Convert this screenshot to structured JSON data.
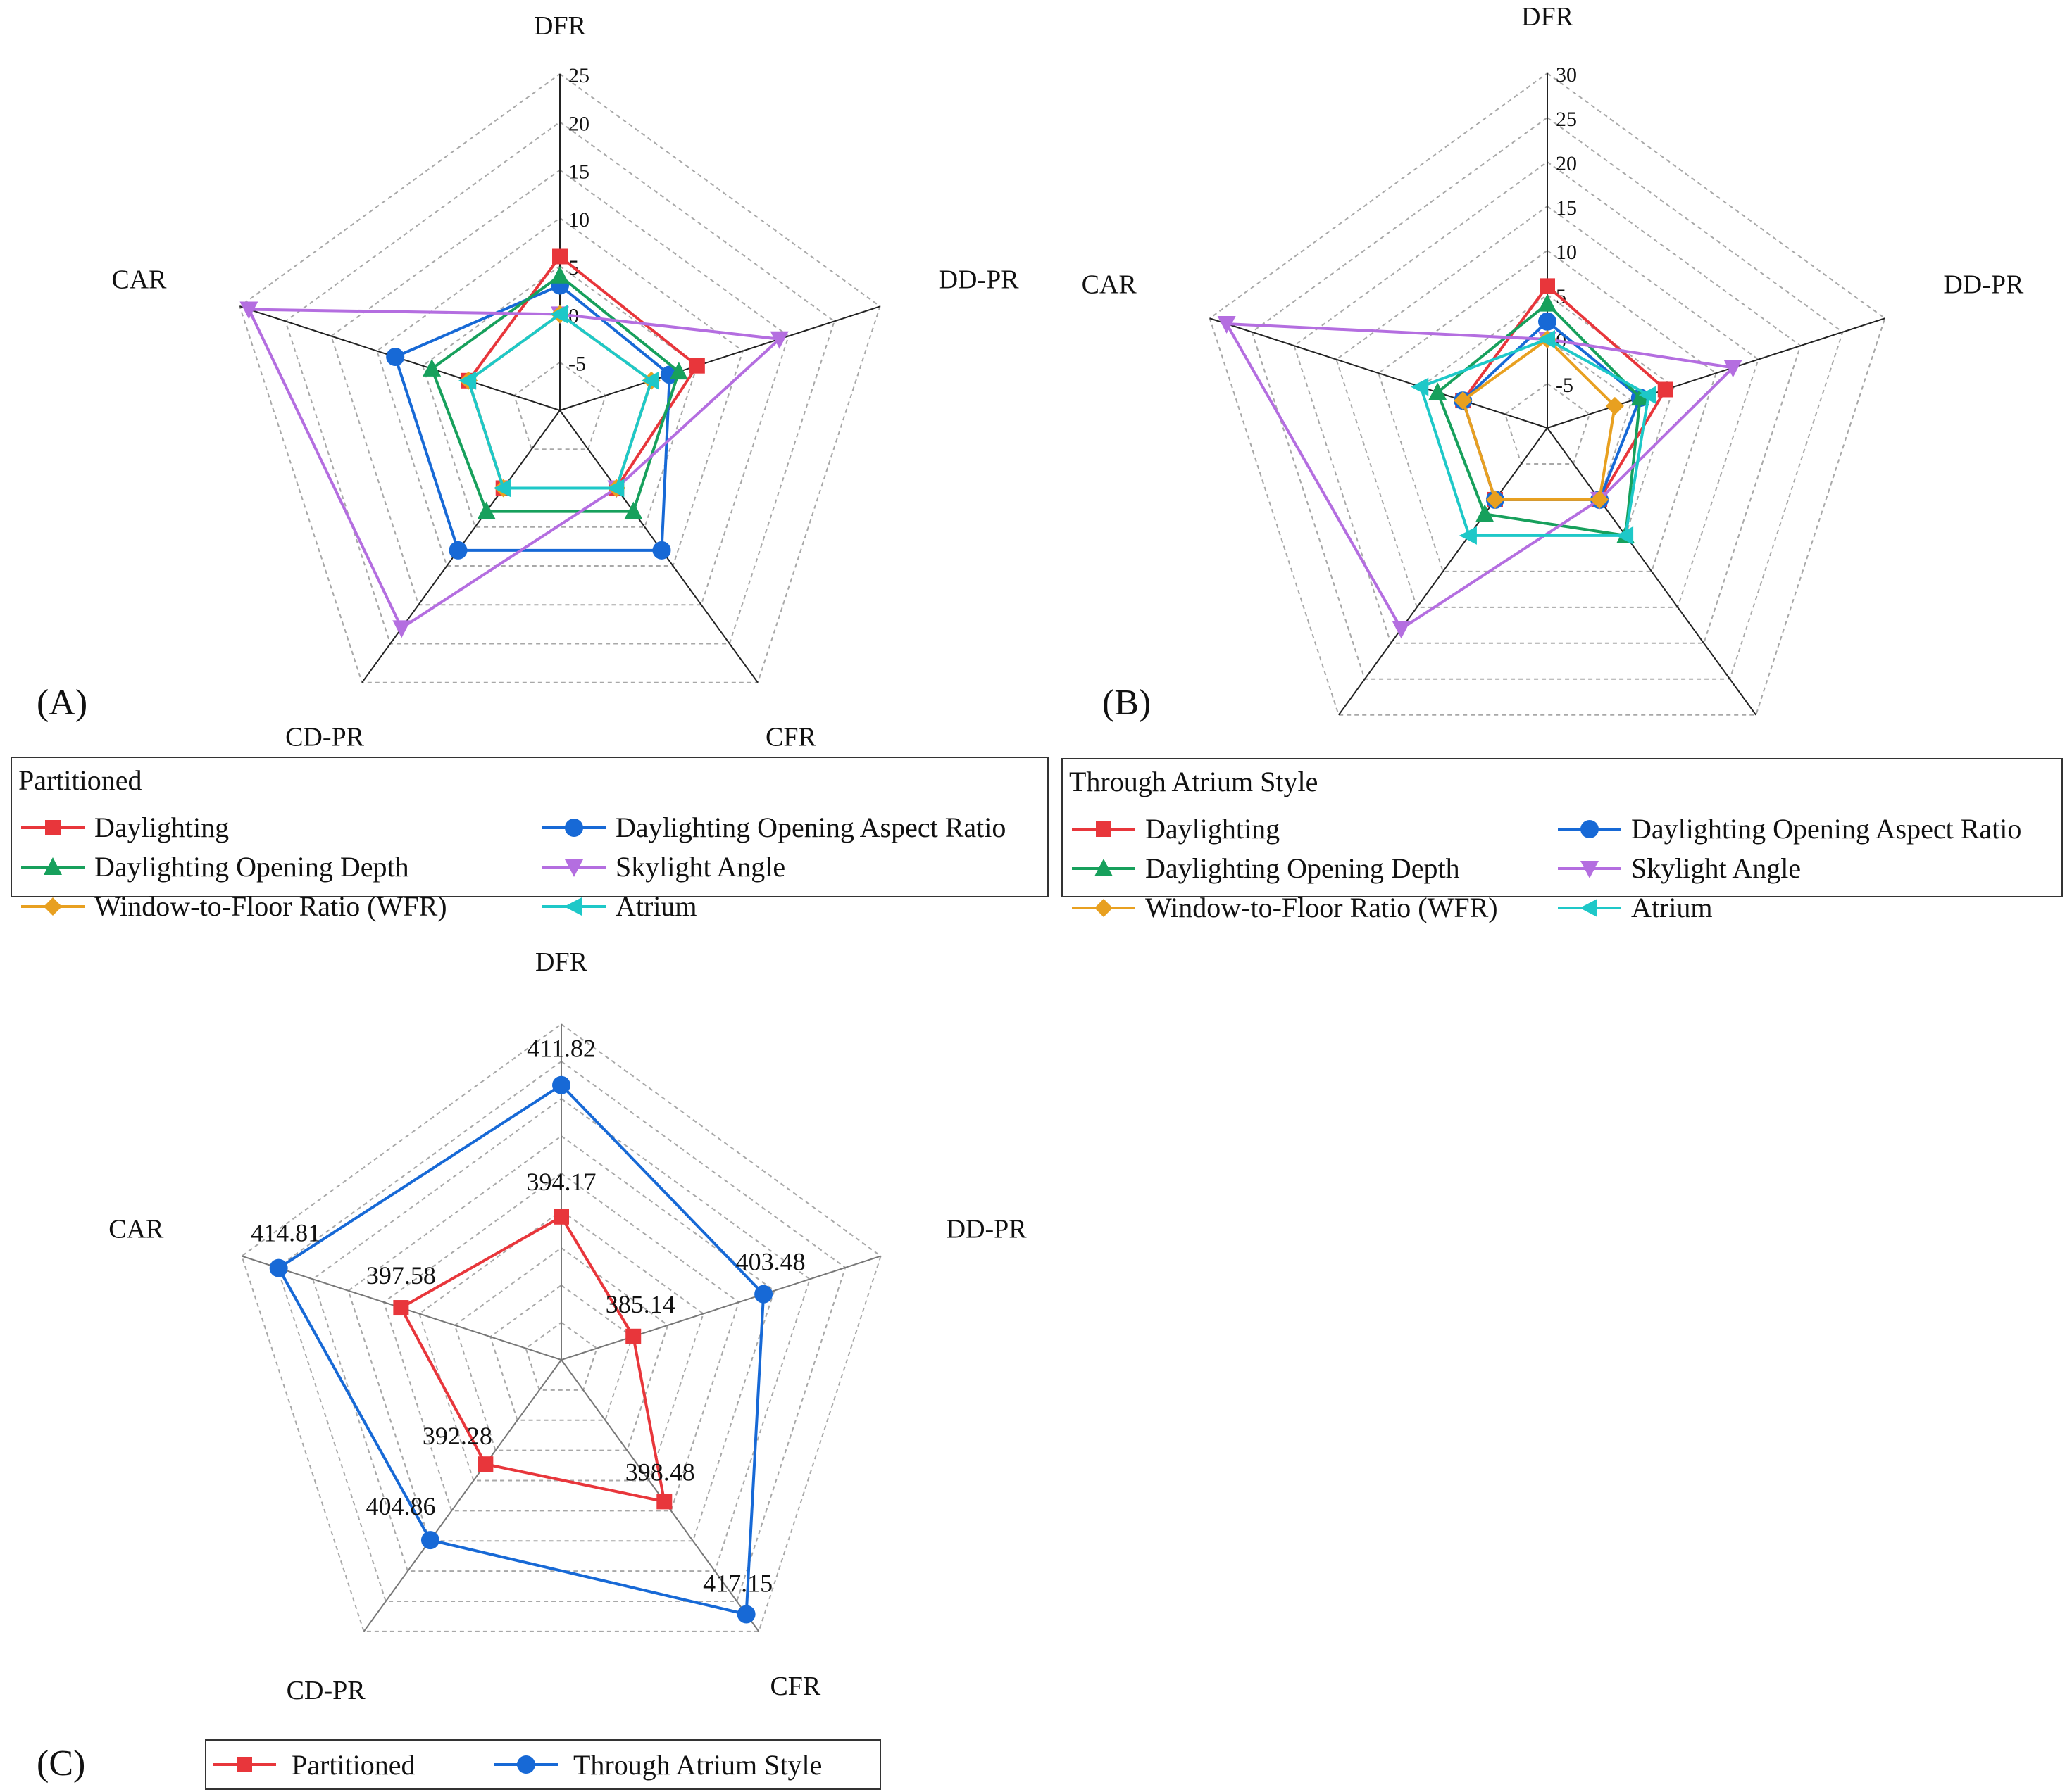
{
  "chart_data": [
    {
      "id": "A",
      "type": "radar",
      "panel_label": "(A)",
      "axes": [
        "DFR",
        "DD-PR",
        "CFR",
        "CD-PR",
        "CAR"
      ],
      "r_range": [
        -10,
        25
      ],
      "ticks": [
        -5,
        0,
        5,
        10,
        15,
        20,
        25
      ],
      "tick_labels": [
        "-5",
        "0",
        "5",
        "10",
        "15",
        "20",
        "25"
      ],
      "legend_title": "Partitioned",
      "series": [
        {
          "name": "Daylighting",
          "color": "#e8363b",
          "marker": "square",
          "values": [
            6,
            5,
            0,
            0,
            0
          ]
        },
        {
          "name": "Daylighting Opening Aspect Ratio",
          "color": "#1769d6",
          "marker": "circle",
          "values": [
            3,
            2,
            8,
            8,
            8
          ]
        },
        {
          "name": "Daylighting Opening Depth",
          "color": "#17a05c",
          "marker": "triangle-up",
          "values": [
            4,
            3,
            3,
            3,
            4
          ]
        },
        {
          "name": "Skylight Angle",
          "color": "#b46ee0",
          "marker": "triangle-down",
          "values": [
            0,
            14,
            0,
            18,
            24
          ]
        },
        {
          "name": "Window-to-Floor Ratio (WFR)",
          "color": "#e8a020",
          "marker": "diamond",
          "values": [
            0,
            0,
            0,
            0,
            0
          ]
        },
        {
          "name": "Atrium",
          "color": "#1ec8c8",
          "marker": "triangle-left",
          "values": [
            0,
            0,
            0,
            0,
            0
          ]
        }
      ]
    },
    {
      "id": "B",
      "type": "radar",
      "panel_label": "(B)",
      "axes": [
        "DFR",
        "DD-PR",
        "CFR",
        "CD-PR",
        "CAR"
      ],
      "r_range": [
        -10,
        30
      ],
      "ticks": [
        -5,
        0,
        5,
        10,
        15,
        20,
        25,
        30
      ],
      "tick_labels": [
        "-5",
        "0",
        "5",
        "10",
        "15",
        "20",
        "25",
        "30"
      ],
      "legend_title": "Through Atrium Style",
      "series": [
        {
          "name": "Daylighting",
          "color": "#e8363b",
          "marker": "square",
          "values": [
            6,
            4,
            0,
            0,
            0
          ]
        },
        {
          "name": "Daylighting Opening Aspect Ratio",
          "color": "#1769d6",
          "marker": "circle",
          "values": [
            2,
            1,
            0,
            0,
            0
          ]
        },
        {
          "name": "Daylighting Opening Depth",
          "color": "#17a05c",
          "marker": "triangle-up",
          "values": [
            4,
            1,
            5,
            2,
            3
          ]
        },
        {
          "name": "Skylight Angle",
          "color": "#b46ee0",
          "marker": "triangle-down",
          "values": [
            0,
            12,
            0,
            18,
            28
          ]
        },
        {
          "name": "Window-to-Floor Ratio (WFR)",
          "color": "#e8a020",
          "marker": "diamond",
          "values": [
            0,
            -2,
            0,
            0,
            0
          ]
        },
        {
          "name": "Atrium",
          "color": "#1ec8c8",
          "marker": "triangle-left",
          "values": [
            0,
            2,
            5,
            5,
            5
          ]
        }
      ]
    },
    {
      "id": "C",
      "type": "radar",
      "panel_label": "(C)",
      "axes": [
        "DFR",
        "DD-PR",
        "CFR",
        "CD-PR",
        "CAR"
      ],
      "r_range": [
        375,
        420
      ],
      "ring_count": 9,
      "series": [
        {
          "name": "Partitioned",
          "color": "#e8363b",
          "marker": "square",
          "values": [
            394.17,
            385.14,
            398.48,
            392.28,
            397.58
          ],
          "labels": [
            "394.17",
            "385.14",
            "398.48",
            "392.28",
            "397.58"
          ]
        },
        {
          "name": "Through Atrium Style",
          "color": "#1769d6",
          "marker": "circle",
          "values": [
            411.82,
            403.48,
            417.15,
            404.86,
            414.81
          ],
          "labels": [
            "411.82",
            "403.48",
            "417.15",
            "404.86",
            "414.81"
          ]
        }
      ]
    }
  ]
}
